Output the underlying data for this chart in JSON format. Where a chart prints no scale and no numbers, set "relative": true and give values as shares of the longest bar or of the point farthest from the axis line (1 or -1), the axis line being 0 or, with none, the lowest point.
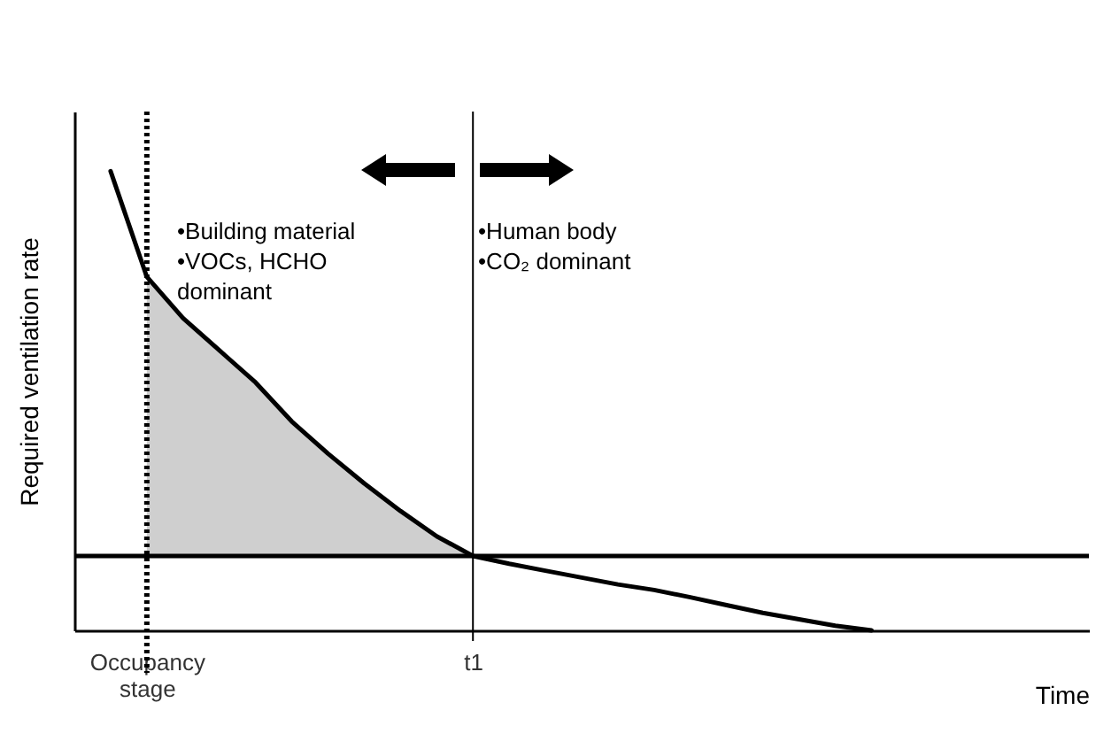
{
  "chart_data": {
    "type": "line",
    "relative": true,
    "xlabel": "Time",
    "ylabel": "Required ventilation rate",
    "categories": [
      null,
      "Occupancy stage",
      null,
      null,
      null,
      null,
      null,
      null,
      null,
      null,
      "t1",
      null,
      null,
      null,
      null,
      null,
      null,
      null,
      null,
      null,
      null,
      null,
      null,
      null,
      null,
      null,
      null
    ],
    "series": [
      {
        "color": "#000000",
        "values": [
          1.0,
          0.77,
          0.68,
          0.61,
          0.54,
          0.455,
          0.385,
          0.32,
          0.26,
          0.205,
          0.162,
          0.145,
          0.13,
          0.115,
          0.1,
          0.088,
          0.072,
          0.055,
          0.038,
          0.024,
          0.01,
          0.0,
          null,
          null,
          null,
          null,
          null
        ],
        "lower": [
          null,
          0.162,
          0.162,
          0.162,
          0.162,
          0.162,
          0.162,
          0.162,
          0.162,
          0.162,
          0.162,
          null,
          null,
          null,
          null,
          null,
          null,
          null,
          null,
          null,
          null,
          null,
          null,
          null,
          null,
          null,
          null
        ],
        "upper": [
          null,
          0.77,
          0.68,
          0.61,
          0.54,
          0.455,
          0.385,
          0.32,
          0.26,
          0.205,
          0.162,
          null,
          null,
          null,
          null,
          null,
          null,
          null,
          null,
          null,
          null,
          null,
          null,
          null,
          null,
          null,
          null
        ]
      }
    ],
    "ref_lines": [
      {
        "axis": "x",
        "value": "Occupancy stage",
        "line_style": "dotted"
      },
      {
        "axis": "x",
        "value": "t1",
        "line_style": "solid"
      },
      {
        "axis": "y",
        "value": 0.162,
        "line_style": "solid"
      }
    ],
    "annotations": [
      "•Building material\n•VOCs, HCHO\n dominant",
      "•Human body\n•CO₂ dominant"
    ],
    "grid": false,
    "marker": "none",
    "line_style": "solid"
  }
}
